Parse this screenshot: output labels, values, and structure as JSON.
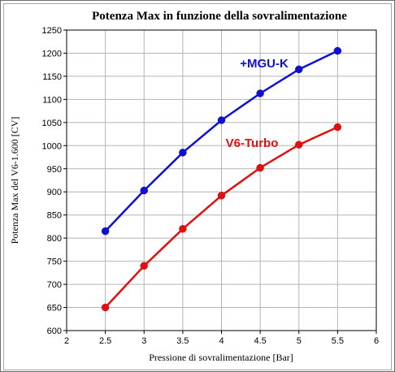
{
  "chart_data": {
    "type": "line",
    "title": "Potenza Max in funzione della sovralimentazione",
    "xlabel": "Pressione di sovralimentazione  [Bar]",
    "ylabel": "Potenza Max del V6-1.600  [CV]",
    "xlim": [
      2,
      6
    ],
    "ylim": [
      600,
      1250
    ],
    "xticks": [
      "2",
      "2.5",
      "3",
      "3.5",
      "4",
      "4.5",
      "5",
      "5.5",
      "6"
    ],
    "yticks": [
      "600",
      "650",
      "700",
      "750",
      "800",
      "850",
      "900",
      "950",
      "1000",
      "1050",
      "1100",
      "1150",
      "1200",
      "1250"
    ],
    "grid": true,
    "x": [
      2.5,
      3,
      3.5,
      4,
      4.5,
      5,
      5.5
    ],
    "series": [
      {
        "name": "+MGU-K",
        "color": "#1010d0",
        "values": [
          815,
          903,
          985,
          1055,
          1113,
          1165,
          1205
        ]
      },
      {
        "name": "V6-Turbo",
        "color": "#e01010",
        "values": [
          650,
          740,
          820,
          892,
          952,
          1002,
          1040
        ]
      }
    ]
  }
}
